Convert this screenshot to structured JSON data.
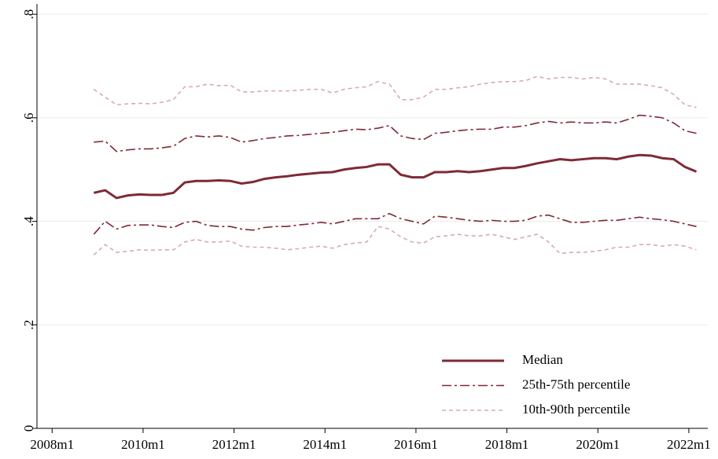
{
  "chart_data": {
    "type": "line",
    "x": [
      "2008m12",
      "2009m3",
      "2009m6",
      "2009m9",
      "2009m12",
      "2010m3",
      "2010m6",
      "2010m9",
      "2010m12",
      "2011m3",
      "2011m6",
      "2011m9",
      "2011m12",
      "2012m3",
      "2012m6",
      "2012m9",
      "2012m12",
      "2013m3",
      "2013m6",
      "2013m9",
      "2013m12",
      "2014m3",
      "2014m6",
      "2014m9",
      "2014m12",
      "2015m3",
      "2015m6",
      "2015m9",
      "2015m12",
      "2016m3",
      "2016m6",
      "2016m9",
      "2016m12",
      "2017m3",
      "2017m6",
      "2017m9",
      "2017m12",
      "2018m3",
      "2018m6",
      "2018m9",
      "2018m12",
      "2019m3",
      "2019m6",
      "2019m9",
      "2019m12",
      "2020m3",
      "2020m6",
      "2020m9",
      "2020m12",
      "2021m3",
      "2021m6",
      "2021m9",
      "2021m12",
      "2022m3"
    ],
    "series": [
      {
        "name": "Median",
        "color": "#7f2a35",
        "dash": "solid",
        "values": [
          0.455,
          0.46,
          0.445,
          0.45,
          0.452,
          0.451,
          0.451,
          0.455,
          0.475,
          0.478,
          0.478,
          0.479,
          0.478,
          0.473,
          0.476,
          0.482,
          0.485,
          0.487,
          0.49,
          0.492,
          0.494,
          0.495,
          0.5,
          0.503,
          0.505,
          0.51,
          0.51,
          0.49,
          0.485,
          0.485,
          0.495,
          0.495,
          0.497,
          0.495,
          0.497,
          0.5,
          0.503,
          0.503,
          0.507,
          0.512,
          0.516,
          0.52,
          0.518,
          0.52,
          0.522,
          0.522,
          0.52,
          0.525,
          0.528,
          0.527,
          0.522,
          0.52,
          0.505,
          0.496
        ]
      },
      {
        "name": "25th-75th percentile",
        "color": "#7f2a35",
        "dash": "dashdot",
        "lower": [
          0.375,
          0.4,
          0.385,
          0.392,
          0.393,
          0.393,
          0.39,
          0.388,
          0.398,
          0.4,
          0.392,
          0.39,
          0.39,
          0.385,
          0.383,
          0.388,
          0.39,
          0.39,
          0.393,
          0.395,
          0.398,
          0.395,
          0.4,
          0.405,
          0.405,
          0.405,
          0.415,
          0.405,
          0.4,
          0.395,
          0.41,
          0.408,
          0.405,
          0.402,
          0.4,
          0.402,
          0.4,
          0.4,
          0.402,
          0.41,
          0.412,
          0.405,
          0.398,
          0.398,
          0.4,
          0.402,
          0.402,
          0.405,
          0.408,
          0.405,
          0.403,
          0.4,
          0.395,
          0.39
        ],
        "upper": [
          0.553,
          0.555,
          0.535,
          0.538,
          0.54,
          0.54,
          0.542,
          0.545,
          0.56,
          0.565,
          0.563,
          0.565,
          0.562,
          0.553,
          0.556,
          0.56,
          0.562,
          0.565,
          0.566,
          0.568,
          0.57,
          0.572,
          0.575,
          0.578,
          0.577,
          0.58,
          0.585,
          0.565,
          0.56,
          0.558,
          0.57,
          0.572,
          0.575,
          0.577,
          0.578,
          0.578,
          0.582,
          0.582,
          0.585,
          0.59,
          0.593,
          0.59,
          0.592,
          0.59,
          0.59,
          0.592,
          0.59,
          0.597,
          0.605,
          0.603,
          0.6,
          0.59,
          0.575,
          0.57
        ]
      },
      {
        "name": "10th-90th percentile",
        "color": "#d8aab0",
        "dash": "dash",
        "lower": [
          0.335,
          0.355,
          0.34,
          0.342,
          0.345,
          0.344,
          0.345,
          0.345,
          0.36,
          0.365,
          0.36,
          0.36,
          0.362,
          0.352,
          0.35,
          0.35,
          0.348,
          0.345,
          0.347,
          0.35,
          0.352,
          0.348,
          0.355,
          0.358,
          0.36,
          0.39,
          0.385,
          0.37,
          0.36,
          0.358,
          0.37,
          0.372,
          0.375,
          0.372,
          0.372,
          0.375,
          0.37,
          0.365,
          0.37,
          0.375,
          0.36,
          0.338,
          0.34,
          0.34,
          0.342,
          0.345,
          0.35,
          0.35,
          0.355,
          0.355,
          0.352,
          0.355,
          0.352,
          0.345
        ],
        "upper": [
          0.655,
          0.64,
          0.625,
          0.627,
          0.628,
          0.627,
          0.63,
          0.635,
          0.66,
          0.66,
          0.665,
          0.662,
          0.663,
          0.65,
          0.65,
          0.652,
          0.652,
          0.652,
          0.653,
          0.655,
          0.655,
          0.648,
          0.655,
          0.658,
          0.66,
          0.67,
          0.665,
          0.635,
          0.635,
          0.64,
          0.655,
          0.655,
          0.658,
          0.66,
          0.665,
          0.668,
          0.67,
          0.67,
          0.672,
          0.68,
          0.675,
          0.678,
          0.678,
          0.675,
          0.678,
          0.675,
          0.665,
          0.665,
          0.665,
          0.662,
          0.658,
          0.645,
          0.625,
          0.62
        ]
      }
    ],
    "xlim": [
      "2007m9",
      "2022m6"
    ],
    "xticks": [
      "2008m1",
      "2010m1",
      "2012m1",
      "2014m1",
      "2016m1",
      "2018m1",
      "2020m1",
      "2022m1"
    ],
    "ylim": [
      0,
      0.82
    ],
    "yticks": [
      0,
      {
        "value": 0.2,
        "label": ".2"
      },
      {
        "value": 0.4,
        "label": ".4"
      },
      {
        "value": 0.6,
        "label": ".6"
      },
      {
        "value": 0.8,
        "label": ".8"
      }
    ],
    "grid": true,
    "legend": "bottom-right"
  }
}
